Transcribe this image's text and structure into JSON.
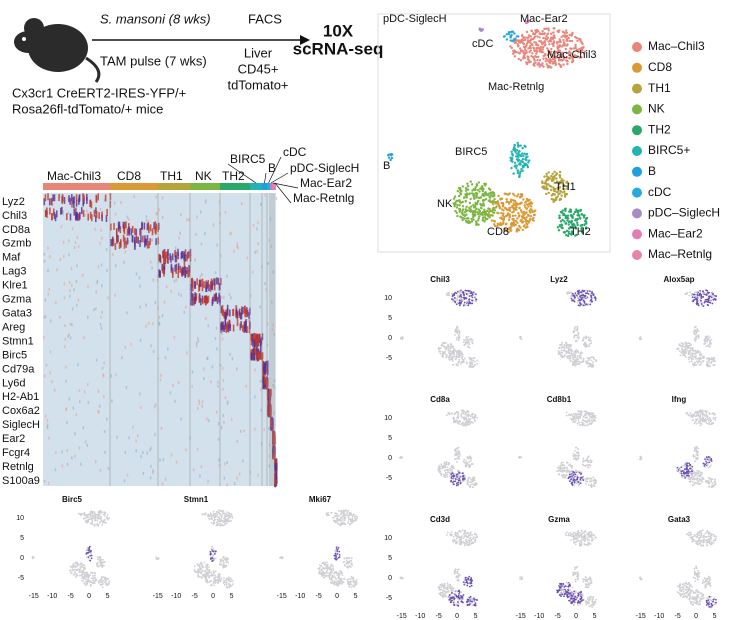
{
  "schematic": {
    "infection": "S. mansoni (8 wks)",
    "pulse": "TAM pulse (7 wks)",
    "sort": "FACS",
    "tissue": [
      "Liver",
      "CD45+",
      "tdTomato+"
    ],
    "method": [
      "10X",
      "scRNA-seq"
    ],
    "mouse": [
      "Cx3cr1 CreERT2-IRES-YFP/+",
      "Rosa26fl-tdTomato/+ mice"
    ]
  },
  "heatmap": {
    "clusters": [
      "Mac-Chil3",
      "CD8",
      "TH1",
      "NK",
      "TH2",
      "BIRC5",
      "B",
      "cDC",
      "pDC-SiglecH",
      "Mac-Ear2",
      "Mac-Retnlg"
    ],
    "genes": [
      "Lyz2",
      "Chil3",
      "CD8a",
      "Gzmb",
      "Maf",
      "Lag3",
      "Klre1",
      "Gzma",
      "Gata3",
      "Areg",
      "Stmn1",
      "Birc5",
      "Cd79a",
      "Ly6d",
      "H2-Ab1",
      "Cox6a2",
      "SiglecH",
      "Ear2",
      "Fcgr4",
      "Retnlg",
      "S100a9"
    ]
  },
  "umap": {
    "labels": [
      "pDC-SiglecH",
      "Mac-Ear2",
      "cDC",
      "Mac-Chil3",
      "Mac-Retnlg",
      "BIRC5",
      "B",
      "TH1",
      "NK",
      "CD8",
      "TH2"
    ],
    "legend": [
      {
        "name": "Mac–Chil3",
        "color": "#e8867a"
      },
      {
        "name": "CD8",
        "color": "#d99a36"
      },
      {
        "name": "TH1",
        "color": "#b5a33b"
      },
      {
        "name": "NK",
        "color": "#7cb542"
      },
      {
        "name": "TH2",
        "color": "#2aa86a"
      },
      {
        "name": "BIRC5+",
        "color": "#22b3b3"
      },
      {
        "name": "B",
        "color": "#1fa0dc"
      },
      {
        "name": "cDC",
        "color": "#27a9e1"
      },
      {
        "name": "pDC–SiglecH",
        "color": "#a98bc6"
      },
      {
        "name": "Mac–Ear2",
        "color": "#e27bb6"
      },
      {
        "name": "Mac–Retnlg",
        "color": "#e586a8"
      }
    ]
  },
  "feature_plots": {
    "genes": [
      "Chil3",
      "Lyz2",
      "Alox5ap",
      "Cd8a",
      "Cd8b1",
      "Ifng",
      "Cd3d",
      "Gzma",
      "Gata3",
      "Birc5",
      "Stmn1",
      "Mki67"
    ],
    "xticks": [
      -15,
      -10,
      -5,
      0,
      5
    ],
    "yticks": [
      10,
      5,
      0,
      -5
    ]
  }
}
